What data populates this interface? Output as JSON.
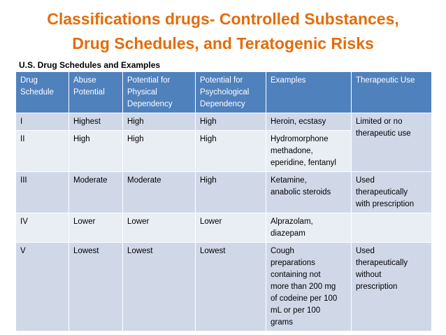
{
  "title_line1": "Classifications drugs- Controlled Substances,",
  "title_line2": "Drug Schedules, and Teratogenic Risks",
  "subtitle": "U.S. Drug Schedules and Examples",
  "colors": {
    "title": "#E36C0A",
    "header_bg": "#4F81BD",
    "row_dark": "#D0D8E8",
    "row_light": "#E9EDF4"
  },
  "table": {
    "headers": [
      "Drug\nSchedule",
      "Abuse\nPotential",
      "Potential for\nPhysical\nDependency",
      "Potential for\nPsychological\nDependency",
      "Examples",
      "Therapeutic Use"
    ],
    "rows": [
      {
        "schedule": "I",
        "abuse": "Highest",
        "physical": "High",
        "psychological": "High",
        "examples": "Heroin, ecstasy",
        "therapeutic": "Limited or no\ntherapeutic use"
      },
      {
        "schedule": "II",
        "abuse": "High",
        "physical": "High",
        "psychological": "High",
        "examples": "Hydromorphone\nmethadone,\neperidine, fentanyl",
        "therapeutic": ""
      },
      {
        "schedule": "III",
        "abuse": "Moderate",
        "physical": "Moderate",
        "psychological": "High",
        "examples": "Ketamine,\nanabolic steroids",
        "therapeutic": "Used\ntherapeutically\nwith prescription"
      },
      {
        "schedule": "IV",
        "abuse": "Lower",
        "physical": "Lower",
        "psychological": "Lower",
        "examples": "Alprazolam,\ndiazepam",
        "therapeutic": ""
      },
      {
        "schedule": "V",
        "abuse": "Lowest",
        "physical": "Lowest",
        "psychological": "Lowest",
        "examples": "Cough\npreparations\ncontaining not\nmore than 200 mg\nof codeine per 100\nmL or per 100\ngrams",
        "therapeutic": "Used\ntherapeutically\nwithout\nprescription"
      }
    ]
  }
}
